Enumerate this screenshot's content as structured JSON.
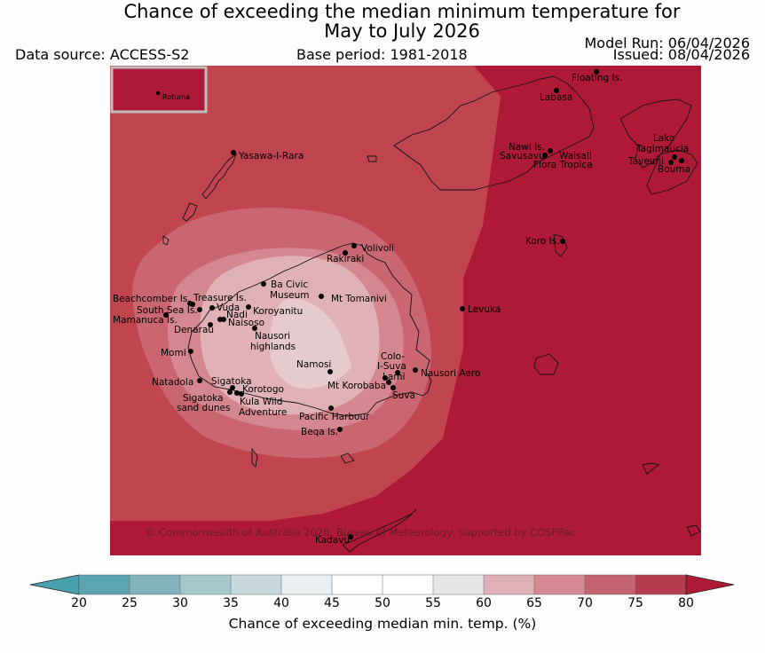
{
  "header": {
    "title_line1": "Chance of exceeding the median minimum temperature for",
    "title_line2": "May to July 2026",
    "data_source": "Data source: ACCESS-S2",
    "base_period": "Base period: 1981-2018",
    "model_run": "Model Run: 06/04/2026",
    "issued": "Issued: 08/04/2026"
  },
  "map": {
    "copyright": "© Commonwealth of Australia 2026, Bureau of Meteorology, supported by COSPPac",
    "inset_label": "Rotuma",
    "places": {
      "floating_is": "Floating Is.",
      "labasa": "Labasa",
      "yasawa": "Yasawa-I-Rara",
      "nawi": "Nawi Is.",
      "savusavu": "Savusavu",
      "waisali": "Waisali",
      "flora_tropica": "Flora Tropica",
      "lake_tagimaucia_1": "Lake",
      "lake_tagimaucia_2": "Tagimaucia",
      "taveuni": "Taveuni",
      "bouma": "Bouma",
      "koro": "Koro Is.",
      "volivoli": "Volivoli",
      "rakiraki": "Rakiraki",
      "ba_civic_1": "Ba Civic",
      "ba_civic_2": "Museum",
      "mt_tomanivi": "Mt Tomanivi",
      "levuka": "Levuka",
      "beachcomber": "Beachcomber Is.",
      "treasure": "Treasure Is.",
      "south_sea": "South Sea Is.",
      "vuda": "Vuda",
      "mamanuca": "Mamanuca Is.",
      "nadi": "Nadi",
      "koroyanitu": "Koroyanitu",
      "naisoso": "Naisoso",
      "denarau": "Denarau",
      "nausori_high_1": "Nausori",
      "nausori_high_2": "highlands",
      "momi": "Momi",
      "namosi": "Namosi",
      "colo_suva_1": "Colo-",
      "colo_suva_2": "I-Suva",
      "nausori_aero": "Nausori Aero",
      "lami": "Lami",
      "mt_korobaba": "Mt Korobaba",
      "suva": "Suva",
      "natadola": "Natadola",
      "sigatoka": "Sigatoka",
      "korotogo": "Korotogo",
      "sigatoka_dunes_1": "Sigatoka",
      "sigatoka_dunes_2": "sand dunes",
      "kula_1": "Kula Wild",
      "kula_2": "Adventure",
      "pacific_harbour": "Pacific Harbour",
      "beqa": "Beqa Is.",
      "kadavu": "Kadavu"
    }
  },
  "colorbar": {
    "label": "Chance of exceeding median min. temp. (%)",
    "ticks": [
      "20",
      "25",
      "30",
      "35",
      "40",
      "45",
      "50",
      "55",
      "60",
      "65",
      "70",
      "75",
      "80"
    ],
    "colors": [
      "#5ca4b1",
      "#82b3be",
      "#a5c7cc",
      "#c6d8dc",
      "#eaf0f2",
      "#ffffff",
      "#ffffff",
      "#e8e6e6",
      "#dfb0b6",
      "#d48891",
      "#c56370",
      "#b63c4b"
    ],
    "under_color": "#49a1af",
    "over_color": "#ae1a36"
  },
  "legend_colors": {
    "over_80": "#ae1a36",
    "c75_80": "#c0454f",
    "c70_75": "#c96670",
    "c65_70": "#d4878f",
    "c60_65": "#e0b2b7",
    "c55_60": "#e6cacd"
  }
}
